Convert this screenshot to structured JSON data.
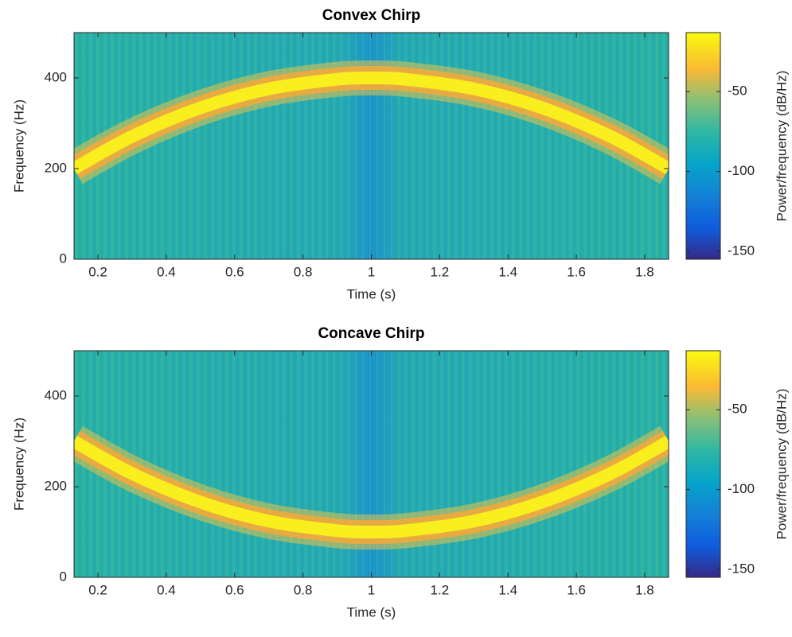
{
  "chart_data": [
    {
      "type": "spectrogram",
      "title": "Convex Chirp",
      "xlabel": "Time (s)",
      "ylabel": "Frequency (Hz)",
      "x": [
        0.13,
        0.3,
        0.5,
        0.7,
        0.9,
        1.0,
        1.1,
        1.3,
        1.5,
        1.7,
        1.87
      ],
      "values": [
        200,
        271,
        334,
        376,
        397,
        400,
        397,
        376,
        334,
        271,
        200
      ],
      "xlim": [
        0.13,
        1.87
      ],
      "ylim": [
        0,
        500
      ],
      "xticks": [
        0.2,
        0.4,
        0.6,
        0.8,
        1,
        1.2,
        1.4,
        1.6,
        1.8
      ],
      "yticks": [
        0,
        200,
        400
      ],
      "colorbar": {
        "label": "Power/frequency (dB/Hz)",
        "clim": [
          -155,
          -13
        ],
        "ticks": [
          -150,
          -100,
          -50
        ]
      }
    },
    {
      "type": "spectrogram",
      "title": "Concave Chirp",
      "xlabel": "Time (s)",
      "ylabel": "Frequency (Hz)",
      "x": [
        0.13,
        0.3,
        0.5,
        0.7,
        0.9,
        1.0,
        1.1,
        1.3,
        1.5,
        1.7,
        1.87
      ],
      "values": [
        300,
        229,
        166,
        124,
        103,
        100,
        103,
        124,
        166,
        229,
        300
      ],
      "xlim": [
        0.13,
        1.87
      ],
      "ylim": [
        0,
        500
      ],
      "xticks": [
        0.2,
        0.4,
        0.6,
        0.8,
        1,
        1.2,
        1.4,
        1.6,
        1.8
      ],
      "yticks": [
        0,
        200,
        400
      ],
      "colorbar": {
        "label": "Power/frequency (dB/Hz)",
        "clim": [
          -155,
          -13
        ],
        "ticks": [
          -150,
          -100,
          -50
        ]
      }
    }
  ]
}
